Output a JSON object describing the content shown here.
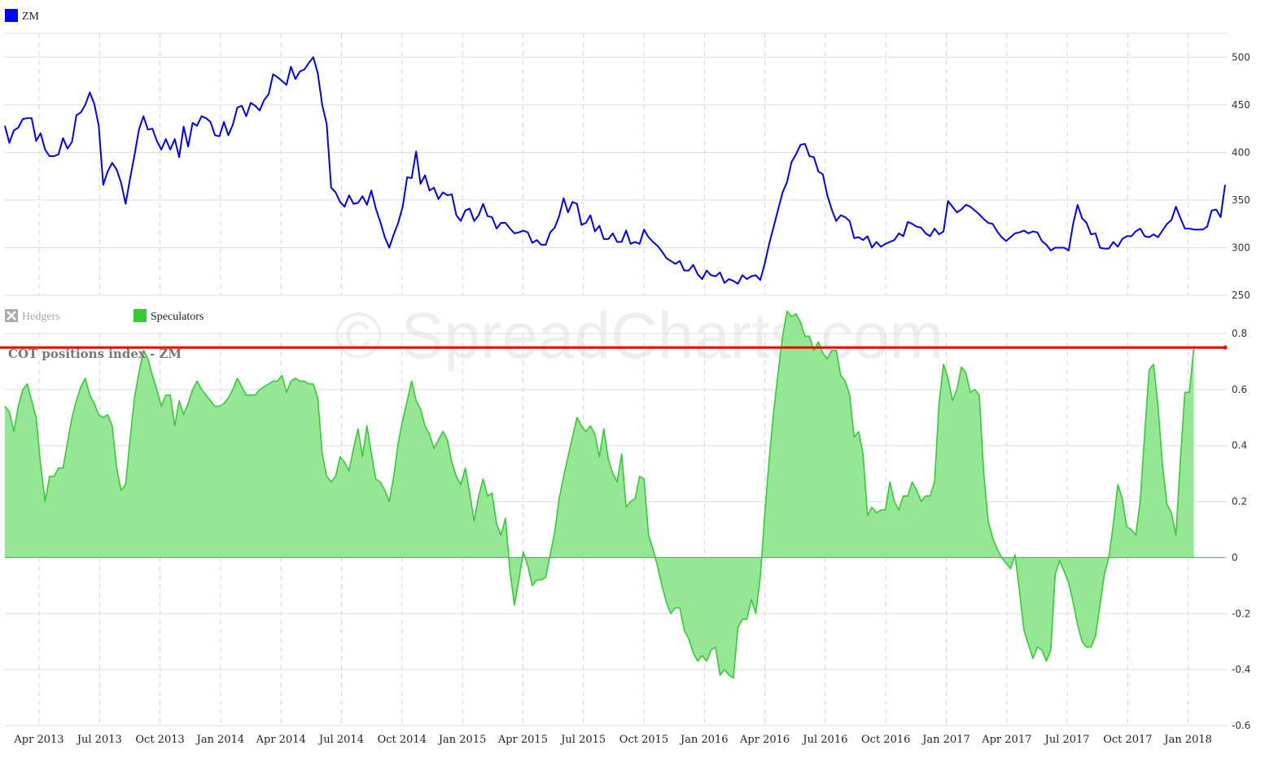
{
  "watermark": "© SpreadCharts.com",
  "chart_data": [
    {
      "type": "line",
      "legend": [
        {
          "name": "ZM",
          "color": "#0000ff"
        }
      ],
      "ylim": [
        250,
        525
      ],
      "yticks": [
        250,
        300,
        350,
        400,
        450,
        500
      ],
      "grid": true,
      "series": [
        {
          "name": "ZM",
          "color": "#0000ff",
          "values": [
            428,
            410,
            423,
            426,
            435,
            436,
            436,
            412,
            420,
            403,
            396,
            396,
            398,
            415,
            404,
            411,
            439,
            442,
            450,
            463,
            451,
            428,
            366,
            380,
            389,
            382,
            368,
            346,
            372,
            397,
            424,
            438,
            424,
            425,
            412,
            403,
            414,
            403,
            414,
            395,
            427,
            406,
            431,
            428,
            438,
            436,
            432,
            418,
            417,
            432,
            418,
            429,
            447,
            449,
            438,
            452,
            449,
            444,
            455,
            461,
            482,
            479,
            475,
            471,
            490,
            477,
            485,
            487,
            494,
            500,
            483,
            450,
            430,
            363,
            358,
            348,
            343,
            355,
            346,
            347,
            354,
            345,
            360,
            341,
            327,
            311,
            300,
            314,
            326,
            343,
            374,
            373,
            401,
            367,
            376,
            360,
            363,
            351,
            358,
            355,
            356,
            334,
            328,
            339,
            341,
            328,
            334,
            346,
            333,
            332,
            320,
            326,
            326,
            320,
            315,
            316,
            318,
            316,
            305,
            308,
            303,
            303,
            316,
            321,
            333,
            352,
            337,
            348,
            346,
            324,
            326,
            334,
            317,
            323,
            309,
            309,
            315,
            306,
            306,
            318,
            304,
            306,
            304,
            319,
            311,
            306,
            302,
            296,
            289,
            286,
            283,
            286,
            276,
            276,
            282,
            272,
            267,
            276,
            271,
            270,
            274,
            263,
            267,
            265,
            262,
            271,
            267,
            270,
            271,
            266,
            283,
            304,
            322,
            340,
            358,
            369,
            390,
            398,
            408,
            409,
            396,
            395,
            380,
            377,
            355,
            340,
            328,
            334,
            332,
            328,
            310,
            311,
            308,
            312,
            300,
            306,
            301,
            304,
            306,
            308,
            315,
            312,
            327,
            325,
            322,
            321,
            315,
            312,
            320,
            314,
            317,
            349,
            343,
            337,
            340,
            345,
            343,
            339,
            335,
            330,
            326,
            325,
            317,
            311,
            307,
            311,
            315,
            316,
            318,
            315,
            317,
            316,
            307,
            303,
            297,
            300,
            300,
            300,
            297,
            325,
            345,
            331,
            326,
            314,
            315,
            300,
            299,
            299,
            306,
            301,
            309,
            312,
            312,
            317,
            320,
            312,
            311,
            314,
            311,
            318,
            325,
            329,
            343,
            331,
            320,
            320,
            319,
            319,
            319,
            322,
            339,
            340,
            332,
            366
          ]
        }
      ]
    },
    {
      "type": "area",
      "title": "COT positions index - ZM",
      "legend": [
        {
          "name": "Hedgers",
          "color": "#aaaaaa",
          "visible": false
        },
        {
          "name": "Speculators",
          "color": "#33cc33",
          "visible": true
        }
      ],
      "ylim": [
        -0.6,
        0.8
      ],
      "yticks": [
        -0.6,
        -0.4,
        -0.2,
        0,
        0.2,
        0.4,
        0.6,
        0.8
      ],
      "threshold": {
        "value": 0.75,
        "color": "#ff0000"
      },
      "grid": true,
      "series": [
        {
          "name": "Speculators",
          "color": "#33cc33",
          "fill": "#95e795",
          "values": [
            0.54,
            0.52,
            0.45,
            0.54,
            0.6,
            0.62,
            0.56,
            0.5,
            0.33,
            0.2,
            0.29,
            0.29,
            0.32,
            0.32,
            0.41,
            0.5,
            0.56,
            0.61,
            0.64,
            0.58,
            0.55,
            0.51,
            0.5,
            0.51,
            0.47,
            0.32,
            0.24,
            0.26,
            0.42,
            0.57,
            0.66,
            0.74,
            0.71,
            0.65,
            0.6,
            0.54,
            0.58,
            0.58,
            0.47,
            0.56,
            0.51,
            0.55,
            0.6,
            0.63,
            0.6,
            0.58,
            0.56,
            0.54,
            0.54,
            0.55,
            0.57,
            0.6,
            0.64,
            0.61,
            0.58,
            0.58,
            0.58,
            0.6,
            0.61,
            0.62,
            0.63,
            0.63,
            0.65,
            0.59,
            0.63,
            0.64,
            0.63,
            0.63,
            0.62,
            0.62,
            0.57,
            0.37,
            0.29,
            0.27,
            0.29,
            0.36,
            0.34,
            0.31,
            0.39,
            0.46,
            0.36,
            0.47,
            0.37,
            0.28,
            0.27,
            0.24,
            0.2,
            0.29,
            0.41,
            0.49,
            0.56,
            0.63,
            0.56,
            0.53,
            0.47,
            0.44,
            0.39,
            0.42,
            0.45,
            0.42,
            0.34,
            0.29,
            0.26,
            0.32,
            0.23,
            0.13,
            0.22,
            0.28,
            0.22,
            0.23,
            0.12,
            0.08,
            0.14,
            -0.05,
            -0.17,
            -0.08,
            0.02,
            -0.03,
            -0.1,
            -0.08,
            -0.08,
            -0.07,
            0.01,
            0.09,
            0.21,
            0.29,
            0.36,
            0.43,
            0.5,
            0.47,
            0.45,
            0.47,
            0.44,
            0.36,
            0.46,
            0.35,
            0.3,
            0.27,
            0.37,
            0.18,
            0.2,
            0.21,
            0.29,
            0.28,
            0.08,
            0.03,
            -0.03,
            -0.1,
            -0.16,
            -0.2,
            -0.18,
            -0.18,
            -0.26,
            -0.29,
            -0.34,
            -0.37,
            -0.35,
            -0.37,
            -0.33,
            -0.32,
            -0.42,
            -0.4,
            -0.42,
            -0.43,
            -0.25,
            -0.22,
            -0.22,
            -0.15,
            -0.2,
            -0.07,
            0.15,
            0.35,
            0.52,
            0.66,
            0.79,
            0.88,
            0.86,
            0.87,
            0.84,
            0.79,
            0.79,
            0.74,
            0.77,
            0.73,
            0.71,
            0.74,
            0.74,
            0.65,
            0.63,
            0.58,
            0.43,
            0.45,
            0.37,
            0.15,
            0.18,
            0.16,
            0.17,
            0.17,
            0.27,
            0.2,
            0.17,
            0.22,
            0.22,
            0.27,
            0.24,
            0.2,
            0.22,
            0.22,
            0.27,
            0.55,
            0.69,
            0.64,
            0.56,
            0.6,
            0.68,
            0.66,
            0.59,
            0.6,
            0.58,
            0.3,
            0.13,
            0.07,
            0.03,
            0,
            -0.02,
            -0.04,
            0.01,
            -0.12,
            -0.26,
            -0.31,
            -0.36,
            -0.32,
            -0.33,
            -0.37,
            -0.33,
            -0.06,
            -0.01,
            -0.05,
            -0.09,
            -0.16,
            -0.24,
            -0.3,
            -0.32,
            -0.32,
            -0.28,
            -0.17,
            -0.06,
            0,
            0.12,
            0.26,
            0.21,
            0.11,
            0.1,
            0.08,
            0.2,
            0.44,
            0.67,
            0.69,
            0.54,
            0.33,
            0.19,
            0.16,
            0.08,
            0.35,
            0.59,
            0.59,
            0.75
          ]
        }
      ]
    }
  ],
  "x_axis": {
    "labels": [
      "Apr 2013",
      "Jul 2013",
      "Oct 2013",
      "Jan 2014",
      "Apr 2014",
      "Jul 2014",
      "Oct 2014",
      "Jan 2015",
      "Apr 2015",
      "Jul 2015",
      "Oct 2015",
      "Jan 2016",
      "Apr 2016",
      "Jul 2016",
      "Oct 2016",
      "Jan 2017",
      "Apr 2017",
      "Jul 2017",
      "Oct 2017",
      "Jan 2018"
    ]
  }
}
